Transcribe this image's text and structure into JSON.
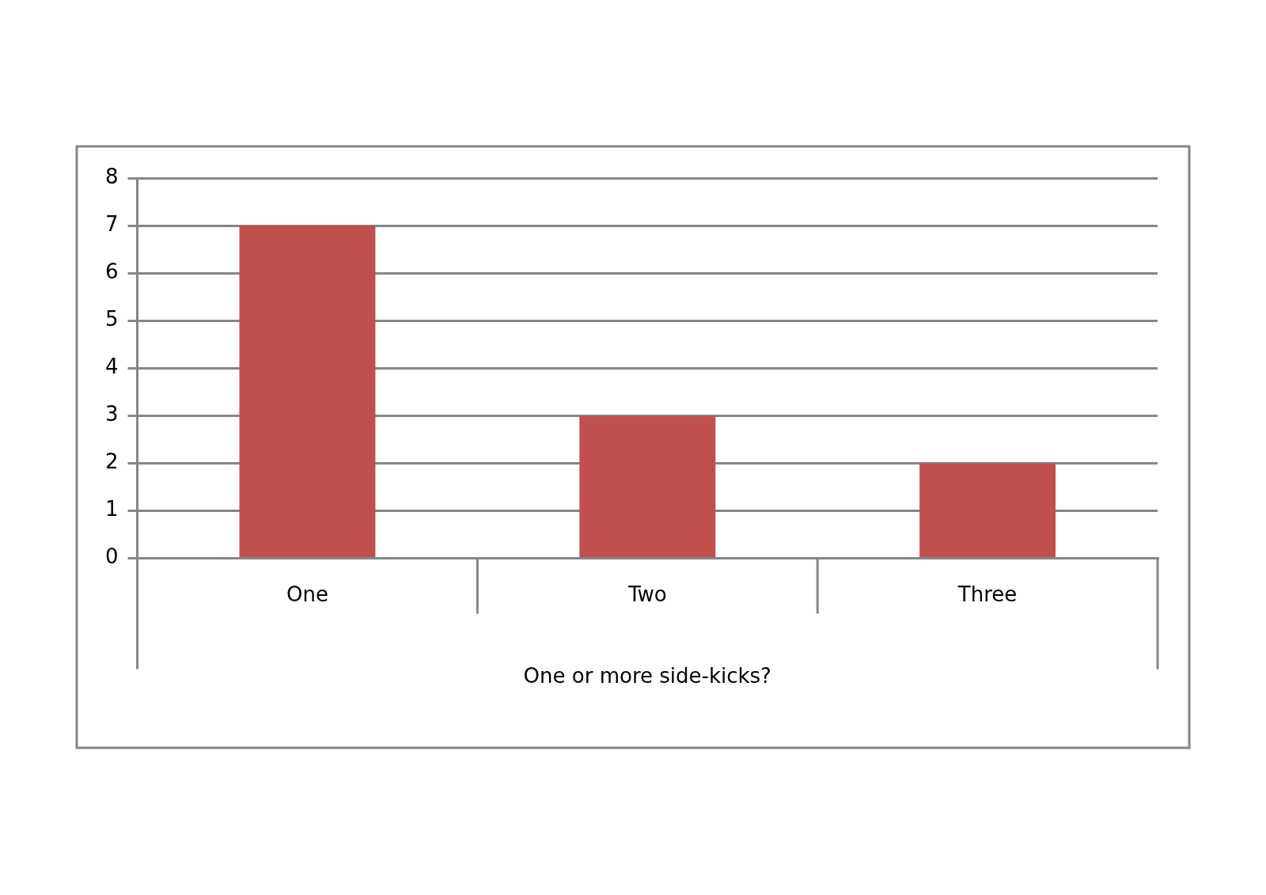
{
  "chart_data": {
    "type": "bar",
    "xlabel": "One or more side-kicks?",
    "categories": [
      "One",
      "Two",
      "Three"
    ],
    "values": [
      7,
      3,
      2
    ],
    "color": "#c0504d",
    "ylim": [
      0,
      8
    ],
    "yticks": [
      0,
      1,
      2,
      3,
      4,
      5,
      6,
      7,
      8
    ],
    "grid": "y",
    "legend": false
  }
}
